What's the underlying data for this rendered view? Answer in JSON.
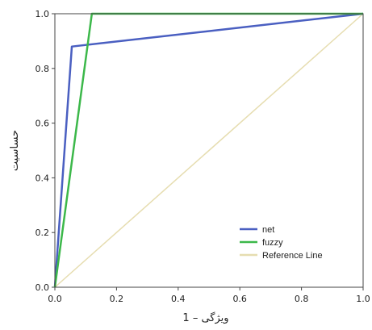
{
  "chart_data": {
    "type": "line",
    "xlabel": "1 – ویژگی",
    "ylabel": "حساسیت",
    "xlim": [
      0.0,
      1.0
    ],
    "ylim": [
      0.0,
      1.0
    ],
    "x_ticks": [
      "0.0",
      "0.2",
      "0.4",
      "0.6",
      "0.8",
      "1.0"
    ],
    "y_ticks": [
      "0.0",
      "0.2",
      "0.4",
      "0.6",
      "0.8",
      "1.0"
    ],
    "grid": false,
    "legend_position": "bottom-right",
    "series": [
      {
        "name": "net",
        "color": "#4a5fc1",
        "points": [
          [
            0.0,
            0.0
          ],
          [
            0.055,
            0.88
          ],
          [
            1.0,
            1.0
          ]
        ]
      },
      {
        "name": "fuzzy",
        "color": "#3cb84a",
        "points": [
          [
            0.0,
            0.0
          ],
          [
            0.12,
            1.0
          ],
          [
            1.0,
            1.0
          ]
        ]
      },
      {
        "name": "Reference Line",
        "color": "#e6ddb0",
        "points": [
          [
            0.0,
            0.0
          ],
          [
            1.0,
            1.0
          ]
        ]
      }
    ]
  }
}
